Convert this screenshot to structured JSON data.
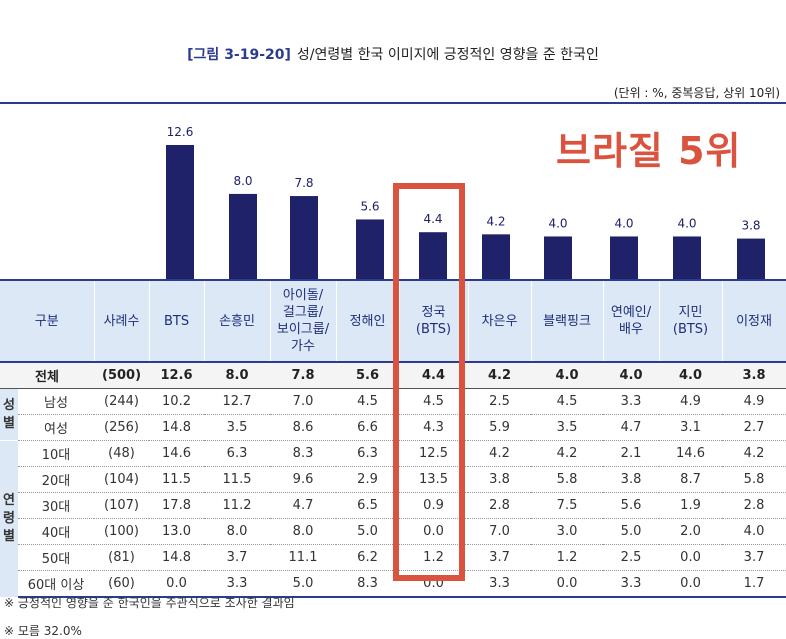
{
  "figure_no": "[그림 3-19-20]",
  "title": "성/연령별 한국 이미지에 긍정적인 영향을 준 한국인",
  "unit_note": "(단위 : %, 중복응답, 상위 10위)",
  "callout": "브라질 5위",
  "colors": {
    "bar": "#1f2268",
    "accent": "#d9533f",
    "header_bg": "#dde8f6",
    "line": "#2b3b8f"
  },
  "chart_data": {
    "type": "bar",
    "categories": [
      "BTS",
      "손흥민",
      "아이돌/걸그룹/보이그룹/가수",
      "정해인",
      "정국(BTS)",
      "차은우",
      "블랙핑크",
      "연예인/배우",
      "지민(BTS)",
      "이정재"
    ],
    "values": [
      12.6,
      8.0,
      7.8,
      5.6,
      4.4,
      4.2,
      4.0,
      4.0,
      4.0,
      3.8
    ],
    "labels": [
      "12.6",
      "8.0",
      "7.8",
      "5.6",
      "4.4",
      "4.2",
      "4.0",
      "4.0",
      "4.0",
      "3.8"
    ],
    "ylim": [
      0,
      14
    ],
    "title": "성/연령별 한국 이미지에 긍정적인 영향을 준 한국인"
  },
  "table": {
    "headers": [
      "구분",
      "사례수",
      "BTS",
      "손흥민",
      "아이돌/\n걸그룹/\n보이그룹/\n가수",
      "정해인",
      "정국\n(BTS)",
      "차은우",
      "블랙핑크",
      "연예인/\n배우",
      "지민\n(BTS)",
      "이정재"
    ],
    "total": {
      "label": "전체",
      "n": "(500)",
      "values": [
        "12.6",
        "8.0",
        "7.8",
        "5.6",
        "4.4",
        "4.2",
        "4.0",
        "4.0",
        "4.0",
        "3.8"
      ]
    },
    "groups": [
      {
        "name": "성\n별",
        "rows": [
          {
            "label": "남성",
            "n": "(244)",
            "values": [
              "10.2",
              "12.7",
              "7.0",
              "4.5",
              "4.5",
              "2.5",
              "4.5",
              "3.3",
              "4.9",
              "4.9"
            ]
          },
          {
            "label": "여성",
            "n": "(256)",
            "values": [
              "14.8",
              "3.5",
              "8.6",
              "6.6",
              "4.3",
              "5.9",
              "3.5",
              "4.7",
              "3.1",
              "2.7"
            ]
          }
        ]
      },
      {
        "name": "연\n령\n별",
        "rows": [
          {
            "label": "10대",
            "n": "(48)",
            "values": [
              "14.6",
              "6.3",
              "8.3",
              "6.3",
              "12.5",
              "4.2",
              "4.2",
              "2.1",
              "14.6",
              "4.2"
            ]
          },
          {
            "label": "20대",
            "n": "(104)",
            "values": [
              "11.5",
              "11.5",
              "9.6",
              "2.9",
              "13.5",
              "3.8",
              "5.8",
              "3.8",
              "8.7",
              "5.8"
            ]
          },
          {
            "label": "30대",
            "n": "(107)",
            "values": [
              "17.8",
              "11.2",
              "4.7",
              "6.5",
              "0.9",
              "2.8",
              "7.5",
              "5.6",
              "1.9",
              "2.8"
            ]
          },
          {
            "label": "40대",
            "n": "(100)",
            "values": [
              "13.0",
              "8.0",
              "8.0",
              "5.0",
              "0.0",
              "7.0",
              "3.0",
              "5.0",
              "2.0",
              "4.0"
            ]
          },
          {
            "label": "50대",
            "n": "(81)",
            "values": [
              "14.8",
              "3.7",
              "11.1",
              "6.2",
              "1.2",
              "3.7",
              "1.2",
              "2.5",
              "0.0",
              "3.7"
            ]
          },
          {
            "label": "60대 이상",
            "n": "(60)",
            "values": [
              "0.0",
              "3.3",
              "5.0",
              "8.3",
              "0.0",
              "3.3",
              "0.0",
              "3.3",
              "0.0",
              "1.7"
            ]
          }
        ]
      }
    ]
  },
  "notes": [
    "※ 긍정적인 영향을 준 한국인을 주관식으로 조사한 결과임",
    "※ 모름 32.0%"
  ]
}
